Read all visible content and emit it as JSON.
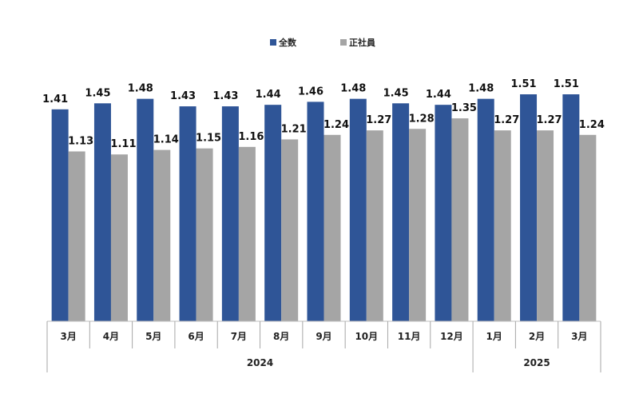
{
  "chart_data": {
    "type": "bar",
    "categories": [
      "3月",
      "4月",
      "5月",
      "6月",
      "7月",
      "8月",
      "9月",
      "10月",
      "11月",
      "12月",
      "1月",
      "2月",
      "3月"
    ],
    "groups": [
      {
        "label": "2024",
        "start": 0,
        "end": 9
      },
      {
        "label": "2025",
        "start": 10,
        "end": 12
      }
    ],
    "series": [
      {
        "name": "全数",
        "color": "#2f5597",
        "values": [
          1.41,
          1.45,
          1.48,
          1.43,
          1.43,
          1.44,
          1.46,
          1.48,
          1.45,
          1.44,
          1.48,
          1.51,
          1.51
        ],
        "labels": [
          "1.41",
          "1.45",
          "1.48",
          "1.43",
          "1.43",
          "1.44",
          "1.46",
          "1.48",
          "1.45",
          "1.44",
          "1.48",
          "1.51",
          "1.51"
        ]
      },
      {
        "name": "正社員",
        "color": "#a5a5a5",
        "values": [
          1.13,
          1.11,
          1.14,
          1.15,
          1.16,
          1.21,
          1.24,
          1.27,
          1.28,
          1.35,
          1.27,
          1.27,
          1.24
        ],
        "labels": [
          "1.13",
          "1.11",
          "1.14",
          "1.15",
          "1.16",
          "1.21",
          "1.24",
          "1.27",
          "1.28",
          "1.35",
          "1.27",
          "1.27",
          "1.24"
        ]
      }
    ],
    "ylim": [
      0,
      1.6
    ],
    "legend": "top-center",
    "grid": false,
    "title": "",
    "xlabel": "",
    "ylabel": ""
  }
}
